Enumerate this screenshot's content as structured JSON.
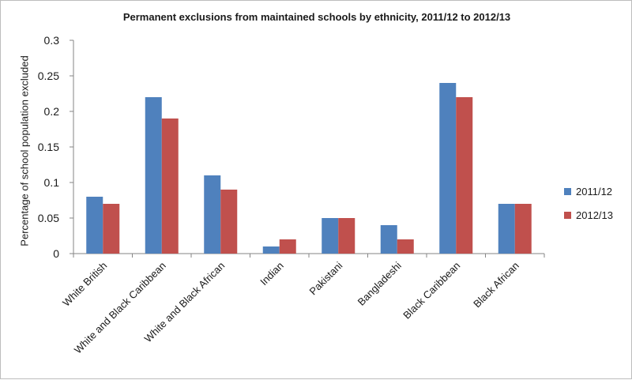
{
  "chart_data": {
    "type": "bar",
    "title": "Permanent exclusions from maintained schools by ethnicity, 2011/12 to 2012/13",
    "xlabel": "",
    "ylabel": "Percentage of school population excluded",
    "categories": [
      "White British",
      "White and Black Caribbean",
      "White and Black African",
      "Indian",
      "Pakistani",
      "Bangladeshi",
      "Black Caribbean",
      "Black African"
    ],
    "series": [
      {
        "name": "2011/12",
        "values": [
          0.08,
          0.22,
          0.11,
          0.01,
          0.05,
          0.04,
          0.24,
          0.07
        ],
        "color": "#4F81BD"
      },
      {
        "name": "2012/13",
        "values": [
          0.07,
          0.19,
          0.09,
          0.02,
          0.05,
          0.02,
          0.22,
          0.07
        ],
        "color": "#C0504D"
      }
    ],
    "yticks": [
      "0",
      "0.05",
      "0.1",
      "0.15",
      "0.2",
      "0.25",
      "0.3"
    ],
    "ylim": [
      0,
      0.3
    ],
    "grid": false,
    "legend": "right"
  }
}
